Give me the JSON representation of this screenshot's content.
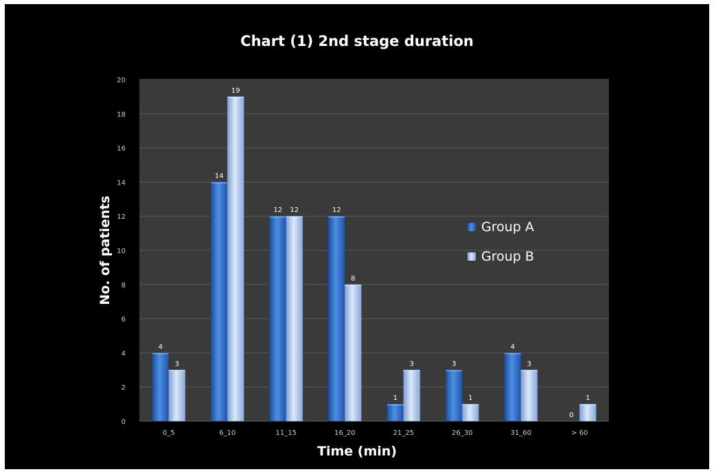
{
  "chart_data": {
    "type": "bar",
    "title": "Chart (1) 2nd stage duration",
    "xlabel": "Time (min)",
    "ylabel": "No. of patients",
    "categories": [
      "0_5",
      "6_10",
      "11_15",
      "16_20",
      "21_25",
      "26_30",
      "31_60",
      "> 60"
    ],
    "series": [
      {
        "name": "Group A",
        "values": [
          4,
          14,
          12,
          12,
          1,
          3,
          4,
          0
        ],
        "color": "#2f6fc7"
      },
      {
        "name": "Group B",
        "values": [
          3,
          19,
          12,
          8,
          3,
          1,
          3,
          1
        ],
        "color": "#a9c4ee"
      }
    ],
    "ylim": [
      0,
      20
    ],
    "yticks": [
      0,
      2,
      4,
      6,
      8,
      10,
      12,
      14,
      16,
      18,
      20
    ],
    "grid": true,
    "legend": "right",
    "colors": {
      "background": "#000000",
      "plot_area": "#3a3a3a",
      "gridline": "#5a5a5a",
      "text": "#ffffff"
    }
  }
}
